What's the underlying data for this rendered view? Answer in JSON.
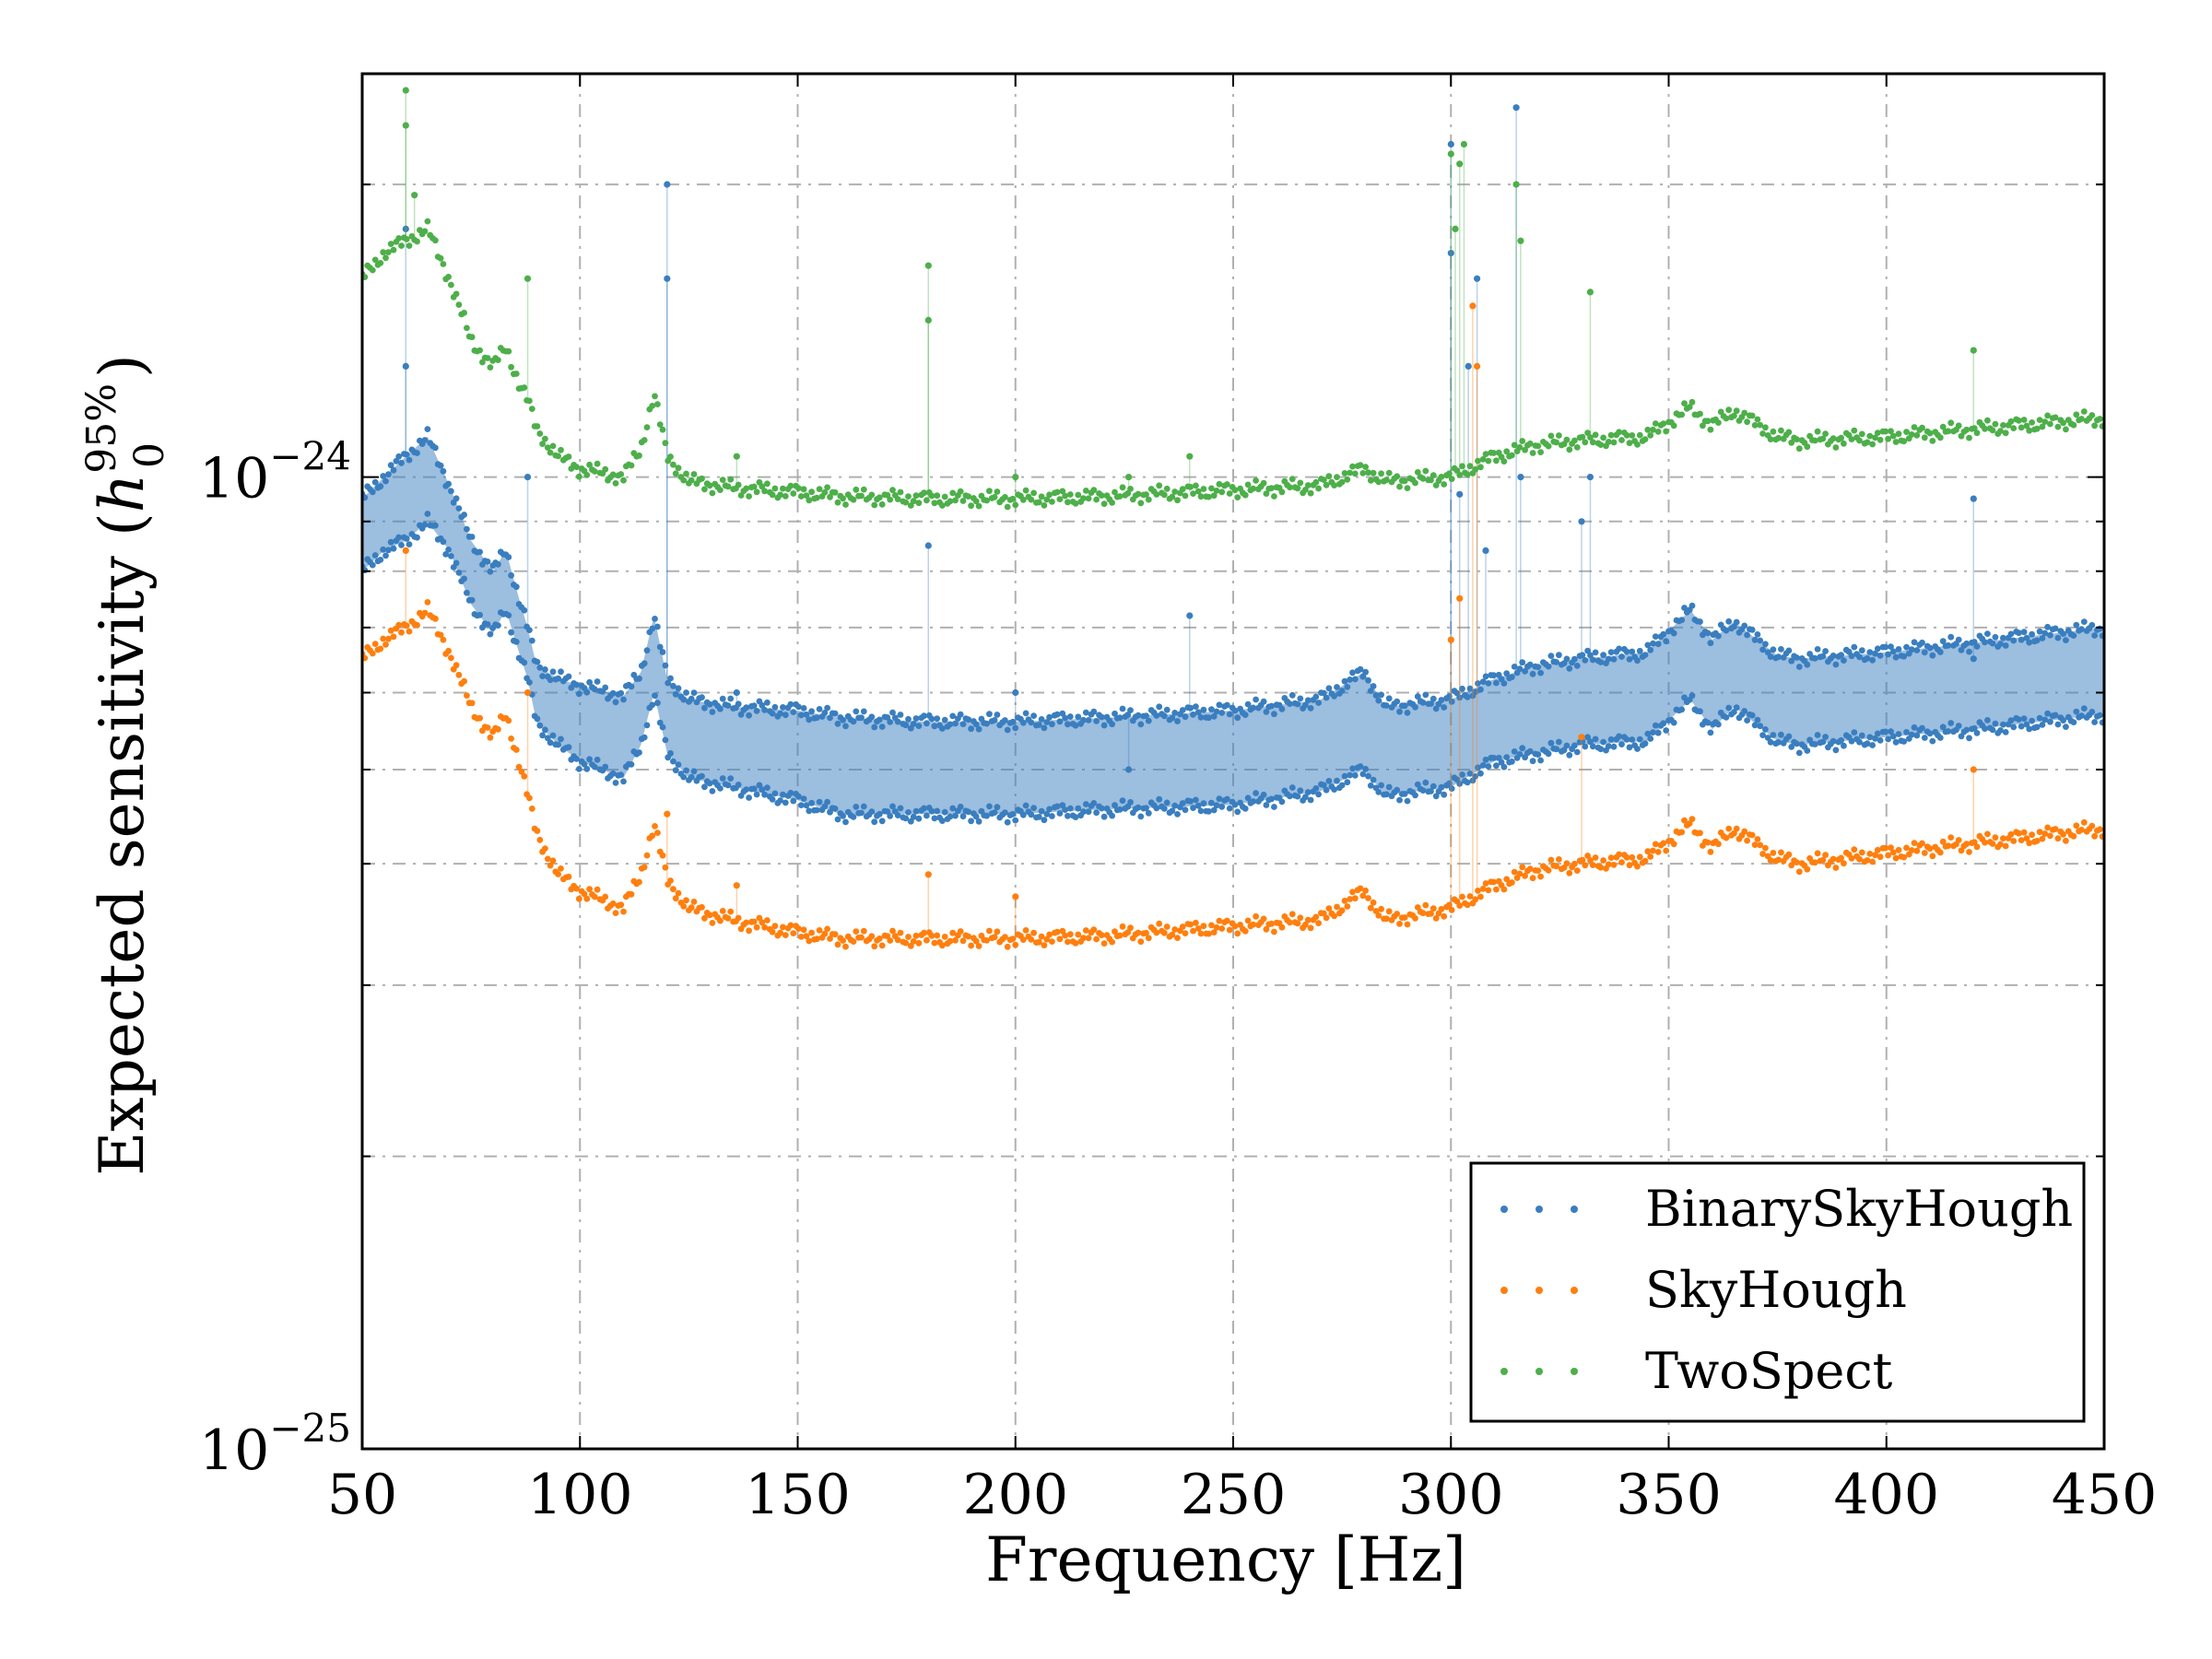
{
  "chart_data": {
    "type": "scatter",
    "title": "",
    "xlabel": "Frequency [Hz]",
    "ylabel_text": "Expected sensitivity (",
    "ylabel_symbol": "h",
    "ylabel_sup": "95%",
    "ylabel_sub": "0",
    "ylabel_close": ")",
    "xlim": [
      50,
      450
    ],
    "ylim": [
      1e-25,
      2.6e-24
    ],
    "yscale": "log",
    "grid": true,
    "legend_position": "lower-right",
    "xticks": [
      {
        "value": 50,
        "label": "50"
      },
      {
        "value": 100,
        "label": "100"
      },
      {
        "value": 150,
        "label": "150"
      },
      {
        "value": 200,
        "label": "200"
      },
      {
        "value": 250,
        "label": "250"
      },
      {
        "value": 300,
        "label": "300"
      },
      {
        "value": 350,
        "label": "350"
      },
      {
        "value": 400,
        "label": "400"
      },
      {
        "value": 450,
        "label": "450"
      }
    ],
    "yticks": [
      {
        "value": 1e-25,
        "base": "10",
        "exp": "−25"
      },
      {
        "value": 1e-24,
        "base": "10",
        "exp": "−24"
      }
    ],
    "yminor": [
      2e-25,
      3e-25,
      4e-25,
      5e-25,
      6e-25,
      7e-25,
      8e-25,
      9e-25,
      2e-24
    ],
    "series": [
      {
        "name": "BinarySkyHough",
        "color": "#3a7ebf",
        "band": true,
        "x": [
          50,
          55,
          60,
          65,
          70,
          75,
          80,
          83,
          86,
          88,
          90,
          95,
          100,
          110,
          114,
          117,
          120,
          125,
          135,
          150,
          160,
          180,
          200,
          220,
          250,
          270,
          280,
          285,
          300,
          310,
          320,
          330,
          345,
          355,
          360,
          365,
          375,
          380,
          400,
          420,
          450
        ],
        "upper": [
          9.5e-25,
          1e-24,
          1.05e-24,
          1.1e-24,
          9.8e-25,
          8.6e-25,
          8e-25,
          8.4e-25,
          7.5e-25,
          7e-25,
          6.4e-25,
          6.2e-25,
          6.1e-25,
          5.95e-25,
          6.3e-25,
          7.2e-25,
          6.2e-25,
          5.9e-25,
          5.8e-25,
          5.75e-25,
          5.65e-25,
          5.6e-25,
          5.6e-25,
          5.65e-25,
          5.75e-25,
          5.9e-25,
          6.3e-25,
          5.8e-25,
          5.9e-25,
          6.2e-25,
          6.4e-25,
          6.5e-25,
          6.6e-25,
          7.3e-25,
          6.8e-25,
          7.1e-25,
          6.55e-25,
          6.5e-25,
          6.6e-25,
          6.75e-25,
          7e-25
        ],
        "lower": [
          8e-25,
          8.4e-25,
          8.6e-25,
          9e-25,
          8.4e-25,
          7.4e-25,
          6.9e-25,
          7.3e-25,
          6.6e-25,
          6.2e-25,
          5.6e-25,
          5.3e-25,
          5.1e-25,
          4.9e-25,
          5.3e-25,
          6e-25,
          5.2e-25,
          4.9e-25,
          4.8e-25,
          4.65e-25,
          4.5e-25,
          4.5e-25,
          4.5e-25,
          4.55e-25,
          4.6e-25,
          4.75e-25,
          5e-25,
          4.7e-25,
          4.8e-25,
          5.1e-25,
          5.2e-25,
          5.3e-25,
          5.35e-25,
          5.9e-25,
          5.5e-25,
          5.8e-25,
          5.35e-25,
          5.3e-25,
          5.4e-25,
          5.5e-25,
          5.7e-25
        ],
        "spikes": [
          {
            "x": 60,
            "y": 1.8e-24
          },
          {
            "x": 60,
            "y": 1.3e-24
          },
          {
            "x": 88,
            "y": 1e-24
          },
          {
            "x": 120,
            "y": 1.6e-24
          },
          {
            "x": 120,
            "y": 2e-24
          },
          {
            "x": 136,
            "y": 6e-25
          },
          {
            "x": 180,
            "y": 8.5e-25
          },
          {
            "x": 200,
            "y": 6e-25
          },
          {
            "x": 226,
            "y": 5e-25
          },
          {
            "x": 240,
            "y": 7.2e-25
          },
          {
            "x": 300,
            "y": 2.2e-24
          },
          {
            "x": 300,
            "y": 1.7e-24
          },
          {
            "x": 302,
            "y": 9.6e-25
          },
          {
            "x": 304,
            "y": 1.3e-24
          },
          {
            "x": 306,
            "y": 1.6e-24
          },
          {
            "x": 308,
            "y": 8.4e-25
          },
          {
            "x": 315,
            "y": 2.4e-24
          },
          {
            "x": 316,
            "y": 1e-24
          },
          {
            "x": 330,
            "y": 9e-25
          },
          {
            "x": 332,
            "y": 1e-24
          },
          {
            "x": 420,
            "y": 9.5e-25
          },
          {
            "x": 420,
            "y": 6.5e-25
          }
        ]
      },
      {
        "name": "SkyHough",
        "color": "#ff7f0e",
        "x": [
          50,
          55,
          60,
          65,
          70,
          75,
          80,
          83,
          86,
          88,
          90,
          95,
          100,
          110,
          114,
          117,
          120,
          125,
          135,
          150,
          160,
          180,
          200,
          220,
          250,
          270,
          280,
          285,
          300,
          310,
          320,
          330,
          345,
          355,
          360,
          365,
          375,
          380,
          400,
          420,
          450
        ],
        "y": [
          6.5e-25,
          6.8e-25,
          7e-25,
          7.3e-25,
          6.6e-25,
          5.8e-25,
          5.4e-25,
          5.7e-25,
          5.1e-25,
          4.7e-25,
          4.3e-25,
          3.9e-25,
          3.75e-25,
          3.6e-25,
          3.9e-25,
          4.4e-25,
          3.85e-25,
          3.6e-25,
          3.5e-25,
          3.4e-25,
          3.35e-25,
          3.35e-25,
          3.35e-25,
          3.37e-25,
          3.45e-25,
          3.5e-25,
          3.75e-25,
          3.5e-25,
          3.6e-25,
          3.8e-25,
          3.95e-25,
          4e-25,
          4.05e-25,
          4.4e-25,
          4.15e-25,
          4.35e-25,
          4.05e-25,
          4e-25,
          4.1e-25,
          4.2e-25,
          4.35e-25
        ],
        "spikes": [
          {
            "x": 60,
            "y": 8.4e-25
          },
          {
            "x": 88,
            "y": 6e-25
          },
          {
            "x": 120,
            "y": 4.5e-25
          },
          {
            "x": 136,
            "y": 3.8e-25
          },
          {
            "x": 180,
            "y": 3.9e-25
          },
          {
            "x": 200,
            "y": 3.7e-25
          },
          {
            "x": 300,
            "y": 6.8e-25
          },
          {
            "x": 302,
            "y": 7.5e-25
          },
          {
            "x": 305,
            "y": 1.5e-24
          },
          {
            "x": 306,
            "y": 1.3e-24
          },
          {
            "x": 330,
            "y": 5.4e-25
          },
          {
            "x": 420,
            "y": 5e-25
          }
        ]
      },
      {
        "name": "TwoSpect",
        "color": "#4daf4a",
        "x": [
          50,
          55,
          60,
          65,
          70,
          75,
          80,
          83,
          86,
          88,
          90,
          95,
          100,
          110,
          114,
          117,
          120,
          125,
          135,
          150,
          160,
          180,
          200,
          220,
          250,
          270,
          280,
          285,
          300,
          310,
          320,
          330,
          345,
          355,
          360,
          365,
          375,
          380,
          400,
          420,
          450
        ],
        "y": [
          1.6e-24,
          1.7e-24,
          1.75e-24,
          1.8e-24,
          1.6e-24,
          1.38e-24,
          1.3e-24,
          1.36e-24,
          1.25e-24,
          1.2e-24,
          1.12e-24,
          1.05e-24,
          1.02e-24,
          1e-24,
          1.07e-24,
          1.22e-24,
          1.05e-24,
          9.9e-25,
          9.75e-25,
          9.65e-25,
          9.55e-25,
          9.5e-25,
          9.5e-25,
          9.55e-25,
          9.7e-25,
          9.8e-25,
          1.02e-24,
          9.9e-25,
          1e-24,
          1.05e-24,
          1.08e-24,
          1.09e-24,
          1.1e-24,
          1.18e-24,
          1.13e-24,
          1.17e-24,
          1.1e-24,
          1.09e-24,
          1.1e-24,
          1.12e-24,
          1.15e-24
        ],
        "spikes": [
          {
            "x": 60,
            "y": 2.5e-24
          },
          {
            "x": 60,
            "y": 2.3e-24
          },
          {
            "x": 62,
            "y": 1.95e-24
          },
          {
            "x": 88,
            "y": 1.6e-24
          },
          {
            "x": 136,
            "y": 1.05e-24
          },
          {
            "x": 180,
            "y": 1.65e-24
          },
          {
            "x": 180,
            "y": 1.45e-24
          },
          {
            "x": 200,
            "y": 1e-24
          },
          {
            "x": 226,
            "y": 1e-24
          },
          {
            "x": 240,
            "y": 1.05e-24
          },
          {
            "x": 300,
            "y": 2.15e-24
          },
          {
            "x": 301,
            "y": 1.8e-24
          },
          {
            "x": 302,
            "y": 2.1e-24
          },
          {
            "x": 303,
            "y": 2.2e-24
          },
          {
            "x": 315,
            "y": 2e-24
          },
          {
            "x": 316,
            "y": 1.75e-24
          },
          {
            "x": 332,
            "y": 1.55e-24
          },
          {
            "x": 420,
            "y": 1.35e-24
          }
        ]
      }
    ]
  }
}
